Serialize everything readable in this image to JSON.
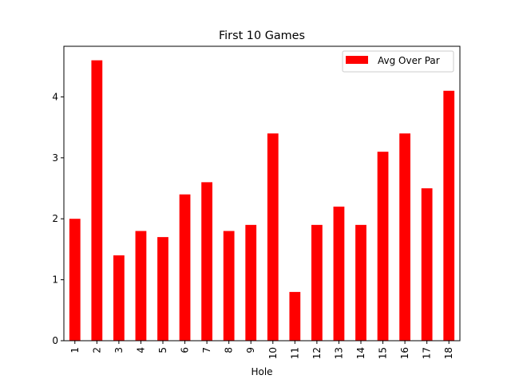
{
  "chart_data": {
    "type": "bar",
    "title": "First 10 Games",
    "xlabel": "Hole",
    "ylabel": "",
    "categories": [
      "1",
      "2",
      "3",
      "4",
      "5",
      "6",
      "7",
      "8",
      "9",
      "10",
      "11",
      "12",
      "13",
      "14",
      "15",
      "16",
      "17",
      "18"
    ],
    "series": [
      {
        "name": "Avg Over Par",
        "color": "#ff0000",
        "values": [
          2.0,
          4.6,
          1.4,
          1.8,
          1.7,
          2.4,
          2.6,
          1.8,
          1.9,
          3.4,
          0.8,
          1.9,
          2.2,
          1.9,
          3.1,
          3.4,
          2.5,
          4.1
        ]
      }
    ],
    "ylim": [
      0,
      4.83
    ],
    "yticks": [
      0,
      1,
      2,
      3,
      4
    ],
    "grid": false,
    "legend_position": "top-right",
    "xtick_rotation": 90
  }
}
